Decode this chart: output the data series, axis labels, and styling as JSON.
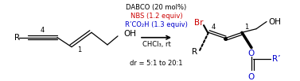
{
  "fig_width": 3.77,
  "fig_height": 1.03,
  "dpi": 100,
  "bg_color": "#ffffff",
  "reagents_line1": "DABCO (20 mol%)",
  "reagents_line2": "NBS (1.2 equiv)",
  "reagents_line3": "R’CO₂H (1.3 equiv)",
  "reagents_line4": "CHCl₃, rt",
  "reagents_line5": "dr = 5:1 to 20:1",
  "reagents_color1": "#000000",
  "reagents_color2": "#cc0000",
  "reagents_color3": "#0000cc",
  "reagents_color4": "#000000",
  "reagents_color5": "#000000",
  "font_size_reagents": 6.0,
  "font_size_struct": 7.5,
  "font_size_label": 6.0,
  "font_size_br": 7.5
}
